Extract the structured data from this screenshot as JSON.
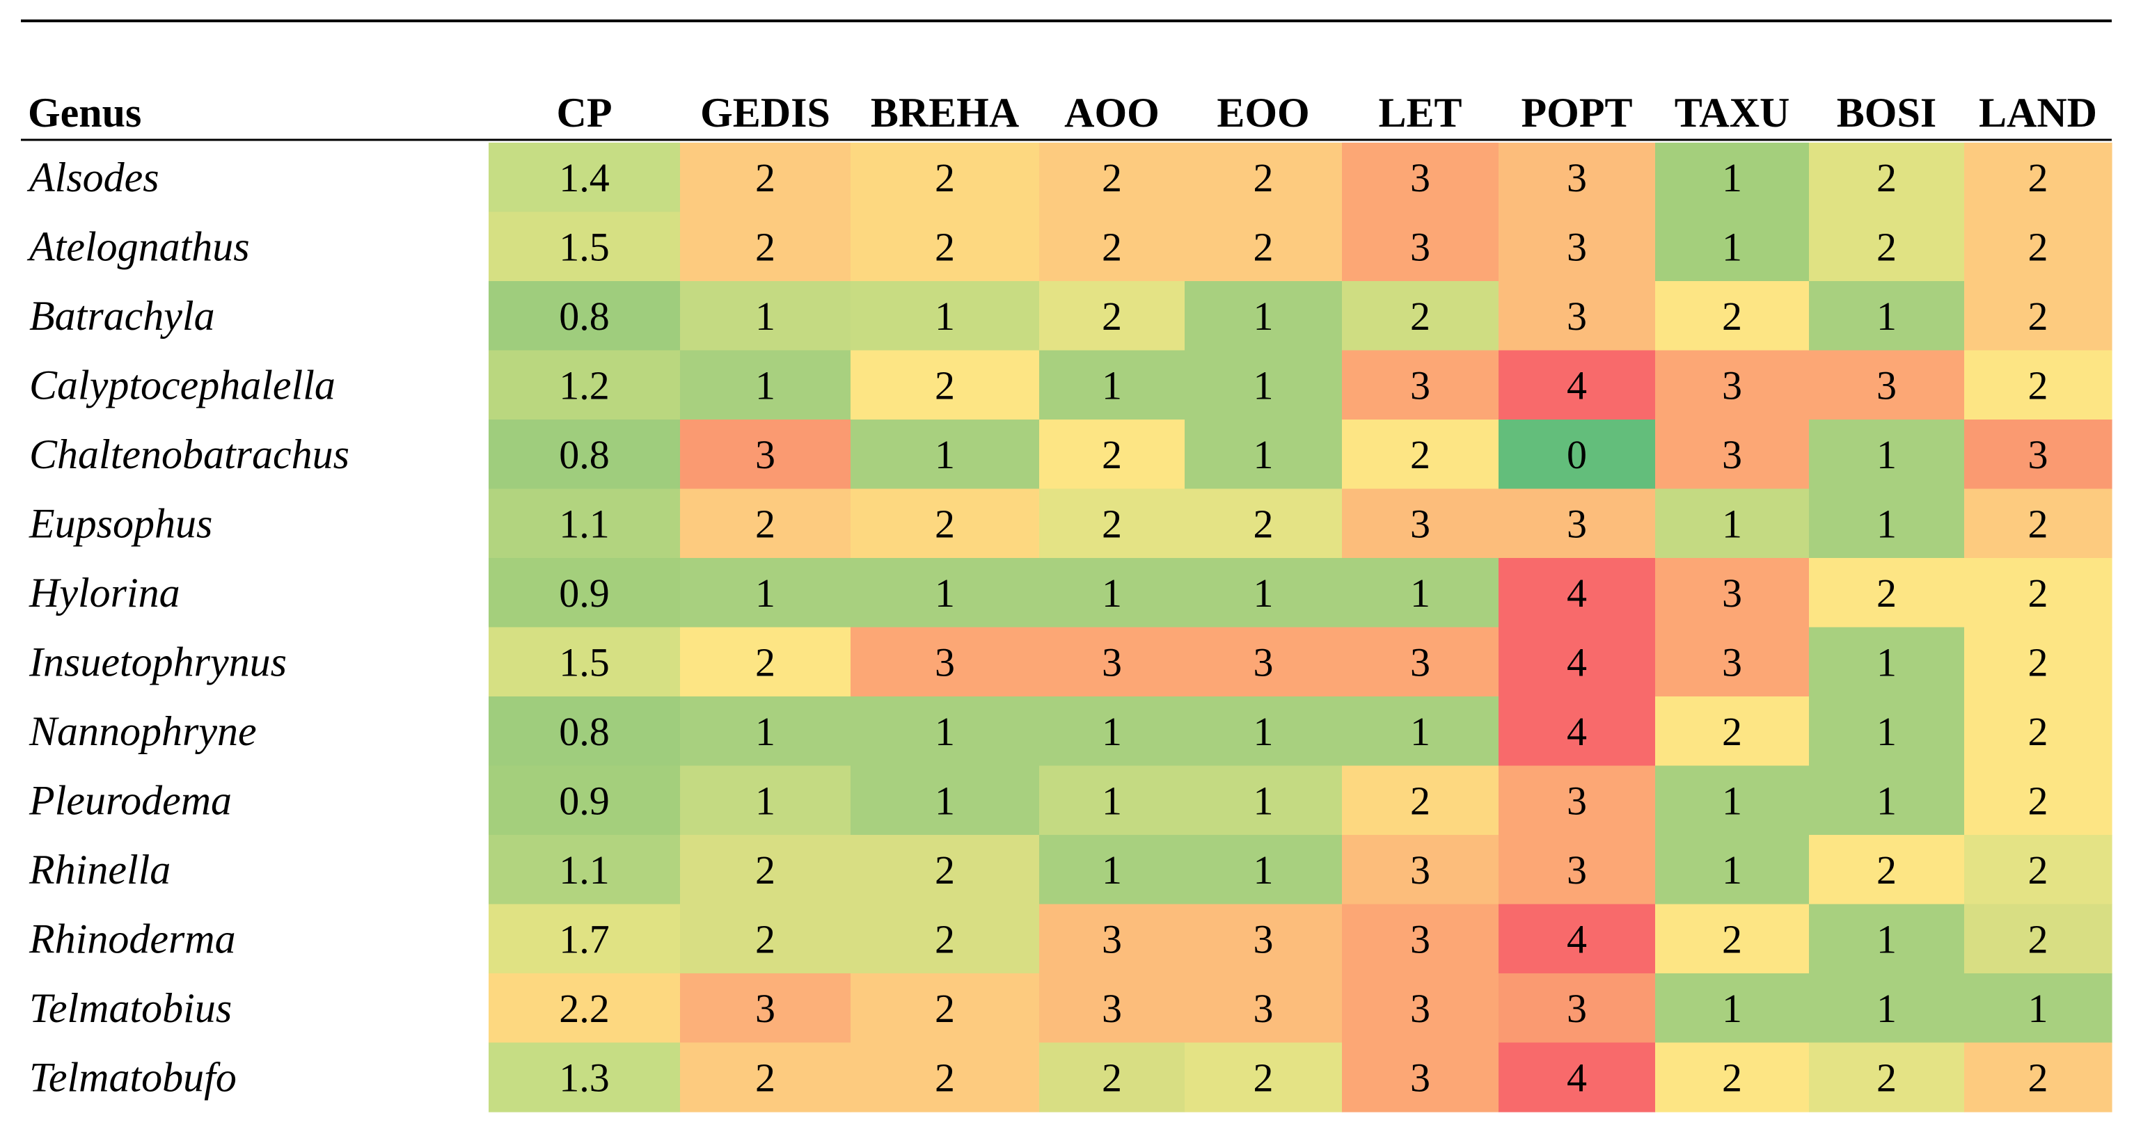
{
  "chart_data": {
    "type": "heatmap",
    "row_header": "Genus",
    "columns": [
      "CP",
      "GEDIS",
      "BREHA",
      "AOO",
      "EOO",
      "LET",
      "POPT",
      "TAXU",
      "BOSI",
      "LAND"
    ],
    "rows": [
      {
        "genus": "Alsodes",
        "values": [
          1.4,
          2,
          2,
          2,
          2,
          3,
          3,
          1,
          2,
          2
        ]
      },
      {
        "genus": "Atelognathus",
        "values": [
          1.5,
          2,
          2,
          2,
          2,
          3,
          3,
          1,
          2,
          2
        ]
      },
      {
        "genus": "Batrachyla",
        "values": [
          0.8,
          1,
          1,
          2,
          1,
          2,
          3,
          2,
          1,
          2
        ]
      },
      {
        "genus": "Calyptocephalella",
        "values": [
          1.2,
          1,
          2,
          1,
          1,
          3,
          4,
          3,
          3,
          2
        ]
      },
      {
        "genus": "Chaltenobatrachus",
        "values": [
          0.8,
          3,
          1,
          2,
          1,
          2,
          0,
          3,
          1,
          3
        ]
      },
      {
        "genus": "Eupsophus",
        "values": [
          1.1,
          2,
          2,
          2,
          2,
          3,
          3,
          1,
          1,
          2
        ]
      },
      {
        "genus": "Hylorina",
        "values": [
          0.9,
          1,
          1,
          1,
          1,
          1,
          4,
          3,
          2,
          2
        ]
      },
      {
        "genus": "Insuetophrynus",
        "values": [
          1.5,
          2,
          3,
          3,
          3,
          3,
          4,
          3,
          1,
          2
        ]
      },
      {
        "genus": "Nannophryne",
        "values": [
          0.8,
          1,
          1,
          1,
          1,
          1,
          4,
          2,
          1,
          2
        ]
      },
      {
        "genus": "Pleurodema",
        "values": [
          0.9,
          1,
          1,
          1,
          1,
          2,
          3,
          1,
          1,
          2
        ]
      },
      {
        "genus": "Rhinella",
        "values": [
          1.1,
          2,
          2,
          1,
          1,
          3,
          3,
          1,
          2,
          2
        ]
      },
      {
        "genus": "Rhinoderma",
        "values": [
          1.7,
          2,
          2,
          3,
          3,
          3,
          4,
          2,
          1,
          2
        ]
      },
      {
        "genus": "Telmatobius",
        "values": [
          2.2,
          3,
          2,
          3,
          3,
          3,
          3,
          1,
          1,
          1
        ]
      },
      {
        "genus": "Telmatobufo",
        "values": [
          1.3,
          2,
          2,
          2,
          2,
          3,
          4,
          2,
          2,
          2
        ]
      }
    ],
    "cell_colors": [
      [
        "#c6dd84",
        "#fdcb7f",
        "#fdd880",
        "#fdcb7f",
        "#fdcb7f",
        "#fca775",
        "#fcbd7b",
        "#a4cf7c",
        "#e0e283",
        "#fdcb7f"
      ],
      [
        "#d6e083",
        "#fdcb7f",
        "#fdd880",
        "#fdcb7f",
        "#fdcb7f",
        "#fca775",
        "#fcbd7b",
        "#a4cf7c",
        "#e0e283",
        "#fdcb7f"
      ],
      [
        "#9fcd7d",
        "#c4da82",
        "#c8dc82",
        "#e4e385",
        "#a8d07f",
        "#cfdd82",
        "#fcbd7b",
        "#fde584",
        "#a8d07f",
        "#fdcb7f"
      ],
      [
        "#bad77f",
        "#a8d07f",
        "#fde584",
        "#a8d07f",
        "#a8d07f",
        "#fca775",
        "#f86a6b",
        "#fca775",
        "#fca775",
        "#fde584"
      ],
      [
        "#9fcd7d",
        "#fa9a71",
        "#a8d07f",
        "#fde584",
        "#a8d07f",
        "#fde584",
        "#63be7b",
        "#fca775",
        "#a8d07f",
        "#fa9a71"
      ],
      [
        "#b2d47f",
        "#fdcb7f",
        "#fdd880",
        "#e4e385",
        "#e4e385",
        "#fcbd7b",
        "#fcbd7b",
        "#c4da82",
        "#a8d07f",
        "#fdcb7f"
      ],
      [
        "#a4cf7c",
        "#a8d07f",
        "#a8d07f",
        "#a8d07f",
        "#a8d07f",
        "#a8d07f",
        "#f86a6b",
        "#fca775",
        "#fde584",
        "#fde584"
      ],
      [
        "#d6e083",
        "#fde584",
        "#fca775",
        "#fca775",
        "#fca775",
        "#fca775",
        "#f86a6b",
        "#fca775",
        "#a8d07f",
        "#fde584"
      ],
      [
        "#9fcd7d",
        "#a8d07f",
        "#a8d07f",
        "#a8d07f",
        "#a8d07f",
        "#a8d07f",
        "#f86a6b",
        "#fde584",
        "#a8d07f",
        "#fde584"
      ],
      [
        "#a4cf7c",
        "#c4da82",
        "#a8d07f",
        "#c4da82",
        "#c4da82",
        "#fdd880",
        "#fca775",
        "#a8d07f",
        "#a8d07f",
        "#fde584"
      ],
      [
        "#b2d47f",
        "#d8de83",
        "#d8de83",
        "#a8d07f",
        "#a8d07f",
        "#fcbd7b",
        "#fca775",
        "#a8d07f",
        "#fde584",
        "#e4e385"
      ],
      [
        "#e0e283",
        "#d8de83",
        "#d8de83",
        "#fcbd7b",
        "#fcbd7b",
        "#fca775",
        "#f86a6b",
        "#fde584",
        "#a8d07f",
        "#d8de83"
      ],
      [
        "#fdd880",
        "#fcb079",
        "#fdcb7f",
        "#fcbd7b",
        "#fcbd7b",
        "#fca775",
        "#fa9a71",
        "#a8d07f",
        "#a8d07f",
        "#a8d07f"
      ],
      [
        "#c6dd84",
        "#fdcb7f",
        "#fdcb7f",
        "#d8de83",
        "#e4e385",
        "#fca775",
        "#f86a6b",
        "#fde584",
        "#e4e385",
        "#fdcb7f"
      ]
    ]
  }
}
